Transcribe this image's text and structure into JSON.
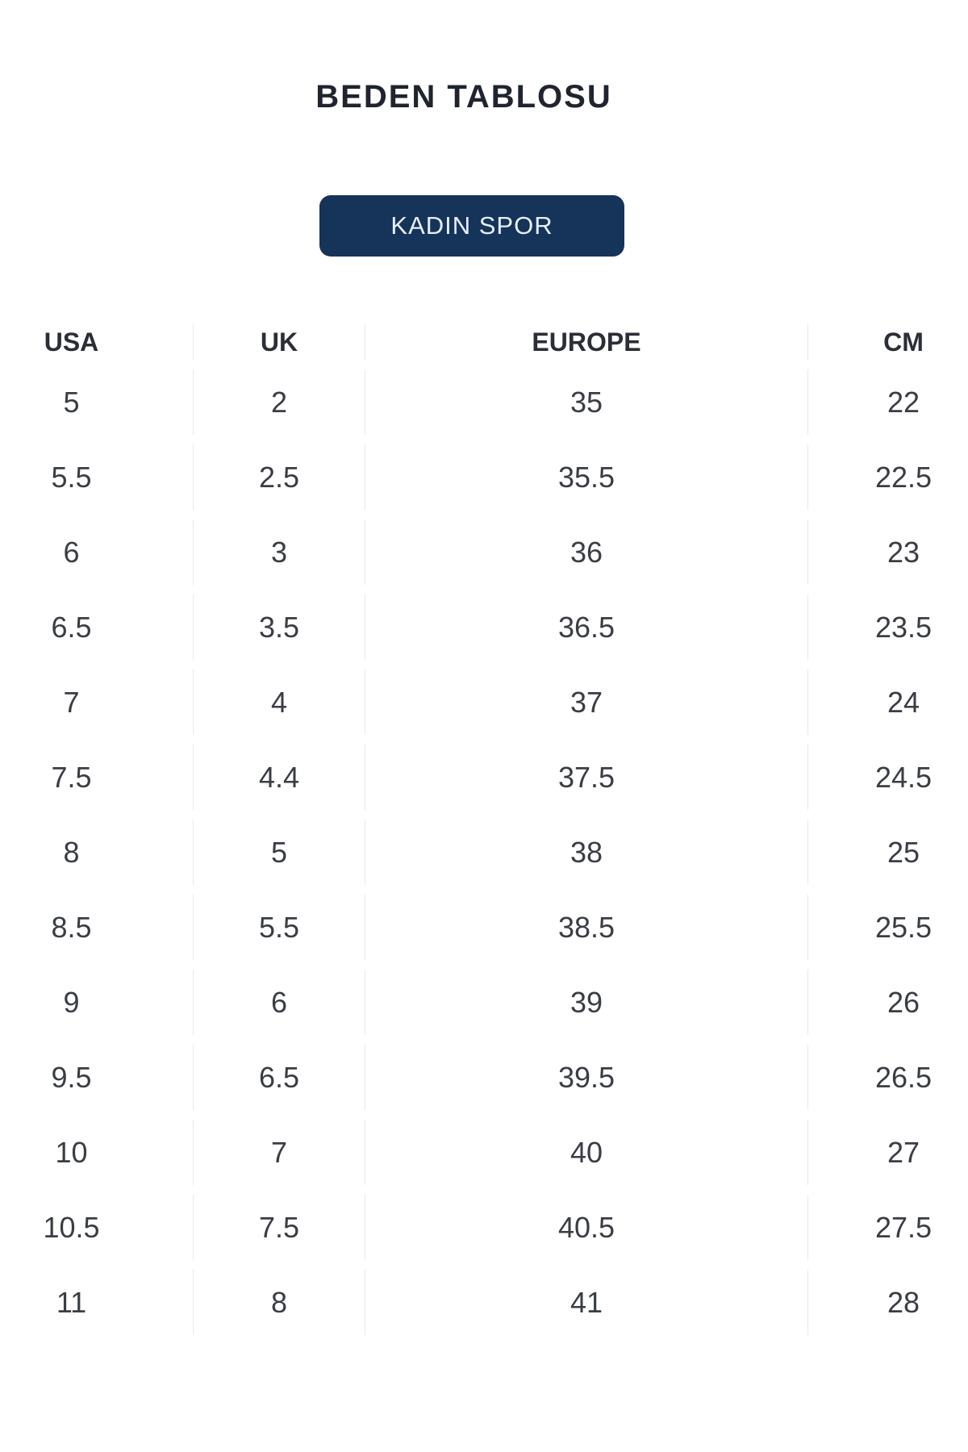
{
  "page": {
    "title": "BEDEN TABLOSU"
  },
  "category_button": {
    "label": "KADIN SPOR"
  },
  "size_table": {
    "columns": [
      "USA",
      "UK",
      "EUROPE",
      "CM"
    ],
    "rows": [
      [
        "5",
        "2",
        "35",
        "22"
      ],
      [
        "5.5",
        "2.5",
        "35.5",
        "22.5"
      ],
      [
        "6",
        "3",
        "36",
        "23"
      ],
      [
        "6.5",
        "3.5",
        "36.5",
        "23.5"
      ],
      [
        "7",
        "4",
        "37",
        "24"
      ],
      [
        "7.5",
        "4.4",
        "37.5",
        "24.5"
      ],
      [
        "8",
        "5",
        "38",
        "25"
      ],
      [
        "8.5",
        "5.5",
        "38.5",
        "25.5"
      ],
      [
        "9",
        "6",
        "39",
        "26"
      ],
      [
        "9.5",
        "6.5",
        "39.5",
        "26.5"
      ],
      [
        "10",
        "7",
        "40",
        "27"
      ],
      [
        "10.5",
        "7.5",
        "40.5",
        "27.5"
      ],
      [
        "11",
        "8",
        "41",
        "28"
      ]
    ]
  },
  "colors": {
    "accent": "#16335a",
    "button_text": "#e6eff8",
    "divider": "#e8e8e8",
    "title_text": "#1f242e",
    "header_text": "#2b2e36",
    "cell_text": "#3a3d44"
  }
}
